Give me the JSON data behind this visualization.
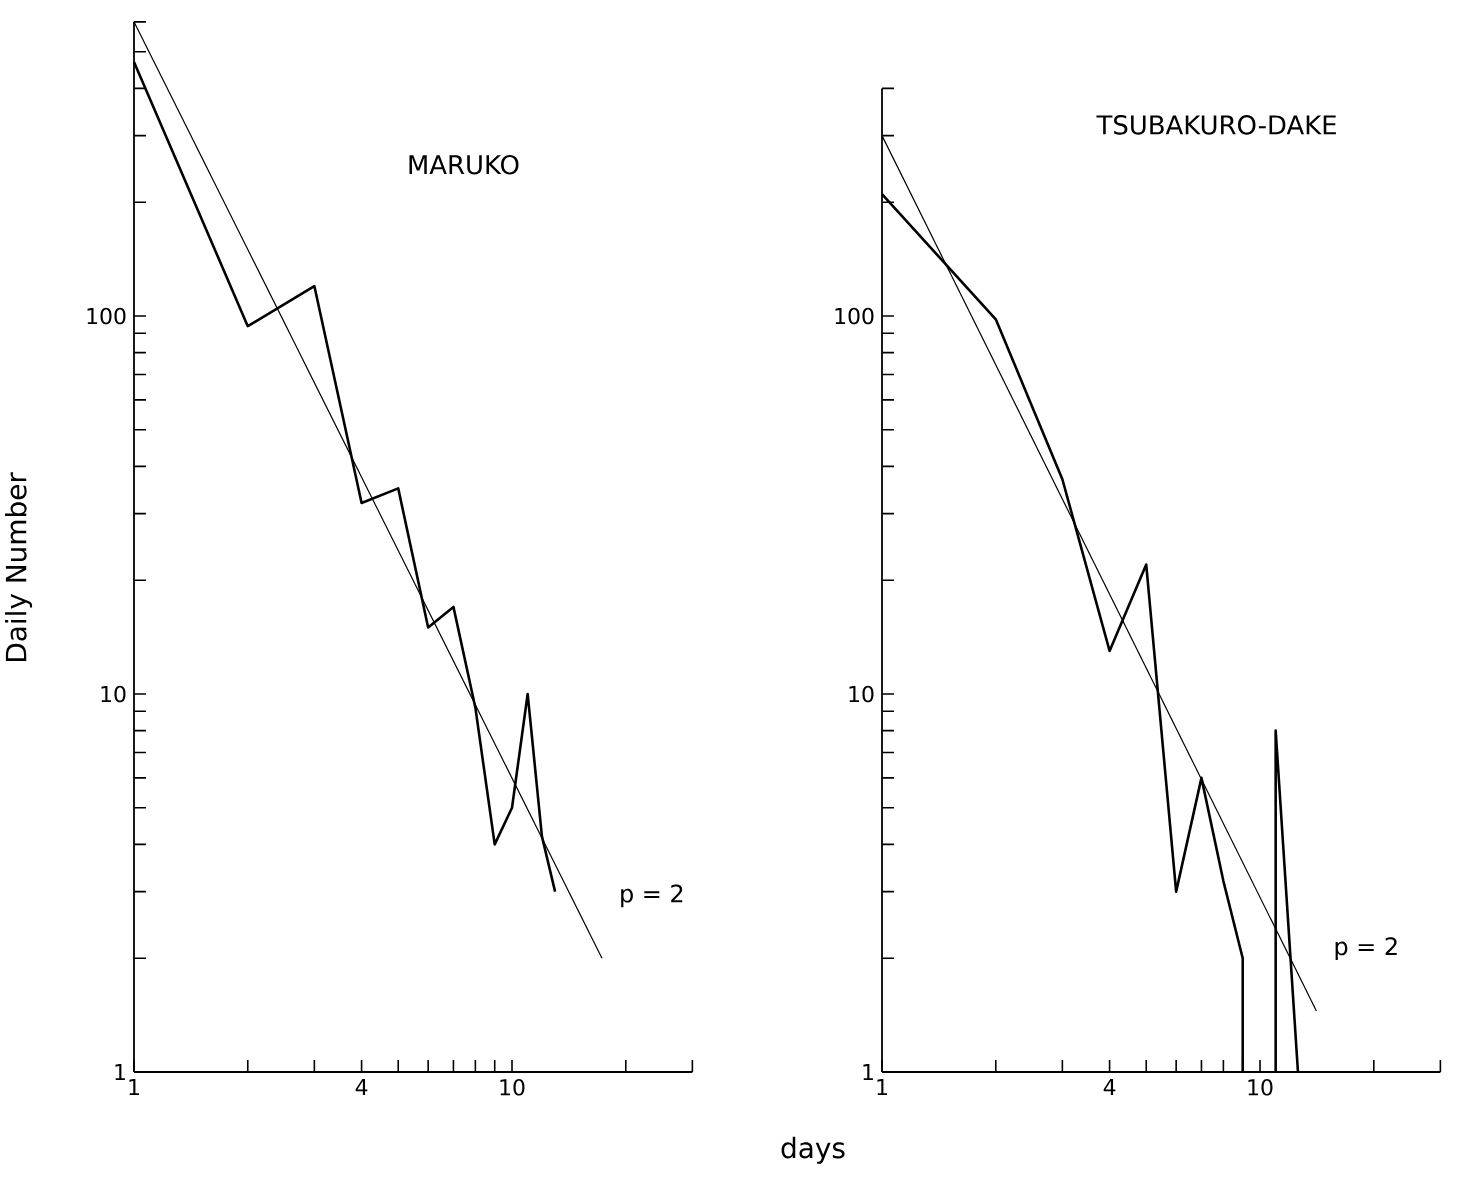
{
  "chart_data": [
    {
      "type": "line",
      "title": "MARUKO",
      "ylabel": "Daily Number",
      "xlabel": "days",
      "log": "xy",
      "xlim": [
        1,
        30
      ],
      "ylim": [
        1,
        600
      ],
      "xticks": [
        1,
        {
          "value": 2,
          "label": null
        },
        {
          "value": 3,
          "label": null
        },
        4,
        {
          "value": 5,
          "label": null
        },
        {
          "value": 6,
          "label": null
        },
        {
          "value": 7,
          "label": null
        },
        {
          "value": 8,
          "label": null
        },
        {
          "value": 9,
          "label": null
        },
        10,
        {
          "value": 20,
          "label": null
        },
        {
          "value": 30,
          "label": null
        }
      ],
      "yticks": [
        1,
        {
          "value": 2,
          "label": null
        },
        {
          "value": 3,
          "label": null
        },
        {
          "value": 4,
          "label": null
        },
        {
          "value": 5,
          "label": null
        },
        {
          "value": 6,
          "label": null
        },
        {
          "value": 7,
          "label": null
        },
        {
          "value": 8,
          "label": null
        },
        {
          "value": 9,
          "label": null
        },
        10,
        {
          "value": 20,
          "label": null
        },
        {
          "value": 30,
          "label": null
        },
        {
          "value": 40,
          "label": null
        },
        {
          "value": 50,
          "label": null
        },
        {
          "value": 60,
          "label": null
        },
        {
          "value": 70,
          "label": null
        },
        {
          "value": 80,
          "label": null
        },
        {
          "value": 90,
          "label": null
        },
        100,
        {
          "value": 200,
          "label": null
        },
        {
          "value": 300,
          "label": null
        },
        {
          "value": 400,
          "label": null
        },
        {
          "value": 500,
          "label": null
        },
        {
          "value": 600,
          "label": null
        }
      ],
      "series": [
        {
          "color": "#000000",
          "x": [
            1,
            2,
            3,
            4,
            5,
            6,
            7,
            8,
            9,
            10,
            11,
            12,
            13
          ],
          "values": [
            470,
            94,
            120,
            32,
            35,
            15,
            17,
            9.2,
            4,
            5,
            10,
            4.2,
            3
          ]
        },
        {
          "name": "p = 2",
          "color": "#000000",
          "x": [
            1,
            17.3
          ],
          "values": [
            600,
            2
          ]
        }
      ]
    },
    {
      "type": "line",
      "title": "TSUBAKURO-DAKE",
      "log": "xy",
      "xlim": [
        1,
        30
      ],
      "ylim": [
        1,
        400
      ],
      "xticks": [
        1,
        {
          "value": 2,
          "label": null
        },
        {
          "value": 3,
          "label": null
        },
        4,
        {
          "value": 5,
          "label": null
        },
        {
          "value": 6,
          "label": null
        },
        {
          "value": 7,
          "label": null
        },
        {
          "value": 8,
          "label": null
        },
        {
          "value": 9,
          "label": null
        },
        10,
        {
          "value": 20,
          "label": null
        },
        {
          "value": 30,
          "label": null
        }
      ],
      "yticks": [
        1,
        {
          "value": 2,
          "label": null
        },
        {
          "value": 3,
          "label": null
        },
        {
          "value": 4,
          "label": null
        },
        {
          "value": 5,
          "label": null
        },
        {
          "value": 6,
          "label": null
        },
        {
          "value": 7,
          "label": null
        },
        {
          "value": 8,
          "label": null
        },
        {
          "value": 9,
          "label": null
        },
        10,
        {
          "value": 20,
          "label": null
        },
        {
          "value": 30,
          "label": null
        },
        {
          "value": 40,
          "label": null
        },
        {
          "value": 50,
          "label": null
        },
        {
          "value": 60,
          "label": null
        },
        {
          "value": 70,
          "label": null
        },
        {
          "value": 80,
          "label": null
        },
        {
          "value": 90,
          "label": null
        },
        100,
        {
          "value": 200,
          "label": null
        },
        {
          "value": 300,
          "label": null
        },
        {
          "value": 400,
          "label": null
        }
      ],
      "series": [
        {
          "color": "#000000",
          "x": [
            1,
            2,
            3,
            4,
            5,
            6,
            7,
            8,
            9,
            9,
            10,
            11,
            11,
            12.6
          ],
          "values": [
            210,
            98,
            37,
            13,
            22,
            3,
            6,
            3.2,
            2,
            1,
            null,
            1,
            8,
            1
          ]
        },
        {
          "name": "p = 2",
          "color": "#000000",
          "x": [
            1,
            14.1
          ],
          "values": [
            300,
            1.45
          ]
        }
      ]
    }
  ]
}
